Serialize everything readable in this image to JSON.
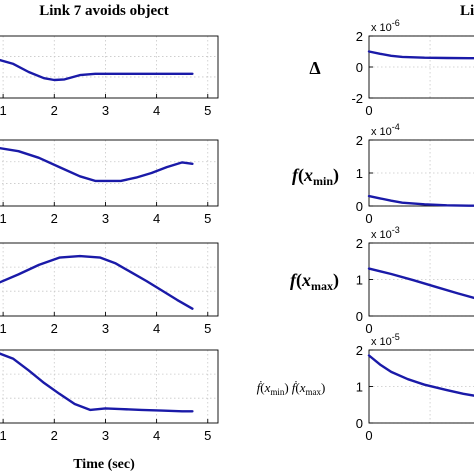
{
  "figure": {
    "left_title": "Link 7 avoids object",
    "right_title": "Link",
    "xlabel": "Time (sec)",
    "line_color": "#1a1aa8",
    "right_ylabels": [
      "Δ",
      "f(xmin)",
      "f(xmax)",
      "ḟ(xmin)ḟ(xmax)"
    ]
  },
  "chart_data": [
    {
      "type": "line",
      "panel": "left-1",
      "title": "Link 7 avoids object",
      "xlabel": "",
      "ylabel": "",
      "x_ticks": [
        "1",
        "2",
        "3",
        "4",
        "5"
      ],
      "xlim": [
        0.9,
        5.2
      ],
      "ylim": [
        0,
        1
      ],
      "series": [
        {
          "x": [
            0.9,
            1.2,
            1.5,
            1.8,
            2.0,
            2.2,
            2.5,
            2.8,
            3.2,
            3.6,
            4.0,
            4.4,
            4.7
          ],
          "y": [
            0.62,
            0.55,
            0.42,
            0.32,
            0.29,
            0.3,
            0.37,
            0.39,
            0.39,
            0.39,
            0.39,
            0.39,
            0.39
          ]
        }
      ],
      "grid": true
    },
    {
      "type": "line",
      "panel": "left-2",
      "title": "",
      "xlabel": "",
      "ylabel": "",
      "x_ticks": [
        "1",
        "2",
        "3",
        "4",
        "5"
      ],
      "xlim": [
        0.9,
        5.2
      ],
      "ylim": [
        0,
        1
      ],
      "series": [
        {
          "x": [
            0.9,
            1.3,
            1.7,
            2.1,
            2.5,
            2.8,
            3.0,
            3.3,
            3.6,
            3.9,
            4.2,
            4.5,
            4.7
          ],
          "y": [
            0.88,
            0.83,
            0.73,
            0.59,
            0.45,
            0.38,
            0.38,
            0.38,
            0.43,
            0.5,
            0.59,
            0.66,
            0.64
          ]
        }
      ],
      "grid": true
    },
    {
      "type": "line",
      "panel": "left-3",
      "title": "",
      "xlabel": "",
      "ylabel": "",
      "x_ticks": [
        "1",
        "2",
        "3",
        "4",
        "5"
      ],
      "xlim": [
        0.9,
        5.2
      ],
      "ylim": [
        0,
        1
      ],
      "series": [
        {
          "x": [
            0.9,
            1.3,
            1.7,
            2.1,
            2.5,
            2.9,
            3.2,
            3.5,
            3.8,
            4.1,
            4.4,
            4.7
          ],
          "y": [
            0.45,
            0.57,
            0.7,
            0.8,
            0.82,
            0.8,
            0.72,
            0.6,
            0.48,
            0.35,
            0.22,
            0.1
          ]
        }
      ],
      "grid": true
    },
    {
      "type": "line",
      "panel": "left-4",
      "title": "",
      "xlabel": "Time (sec)",
      "ylabel": "",
      "x_ticks": [
        "1",
        "2",
        "3",
        "4",
        "5"
      ],
      "xlim": [
        0.9,
        5.2
      ],
      "ylim": [
        0,
        1
      ],
      "series": [
        {
          "x": [
            0.9,
            1.2,
            1.5,
            1.8,
            2.1,
            2.4,
            2.7,
            3.0,
            3.3,
            3.7,
            4.1,
            4.5,
            4.7
          ],
          "y": [
            0.96,
            0.88,
            0.72,
            0.55,
            0.4,
            0.26,
            0.18,
            0.2,
            0.19,
            0.18,
            0.17,
            0.16,
            0.16
          ]
        }
      ],
      "grid": true
    },
    {
      "type": "line",
      "panel": "right-1",
      "title": "",
      "xlabel": "",
      "ylabel": "Δ",
      "x_ticks": [
        "0"
      ],
      "y_ticks": [
        "2",
        "0",
        "-2"
      ],
      "y_multiplier": "x 10",
      "y_exponent": "-6",
      "xlim": [
        0,
        1
      ],
      "ylim": [
        -2,
        2
      ],
      "series": [
        {
          "x": [
            0,
            0.1,
            0.2,
            0.3,
            0.5,
            0.7,
            0.9,
            1.0
          ],
          "y": [
            1.0,
            0.85,
            0.72,
            0.65,
            0.6,
            0.58,
            0.57,
            0.57
          ]
        }
      ],
      "grid": true
    },
    {
      "type": "line",
      "panel": "right-2",
      "title": "",
      "xlabel": "",
      "ylabel": "f(xmin)",
      "x_ticks": [
        "0"
      ],
      "y_ticks": [
        "2",
        "1",
        "0"
      ],
      "y_multiplier": "x 10",
      "y_exponent": "-4",
      "xlim": [
        0,
        1
      ],
      "ylim": [
        0,
        2
      ],
      "series": [
        {
          "x": [
            0,
            0.1,
            0.2,
            0.3,
            0.5,
            0.7,
            0.9,
            1.0
          ],
          "y": [
            0.3,
            0.23,
            0.16,
            0.1,
            0.05,
            0.02,
            0.01,
            0.01
          ]
        }
      ],
      "grid": true
    },
    {
      "type": "line",
      "panel": "right-3",
      "title": "",
      "xlabel": "",
      "ylabel": "f(xmax)",
      "x_ticks": [
        "0"
      ],
      "y_ticks": [
        "2",
        "1",
        "0"
      ],
      "y_multiplier": "x 10",
      "y_exponent": "-3",
      "xlim": [
        0,
        1
      ],
      "ylim": [
        0,
        2
      ],
      "series": [
        {
          "x": [
            0,
            0.2,
            0.4,
            0.6,
            0.8,
            1.0
          ],
          "y": [
            1.3,
            1.15,
            0.98,
            0.8,
            0.62,
            0.45
          ]
        }
      ],
      "grid": true
    },
    {
      "type": "line",
      "panel": "right-4",
      "title": "",
      "xlabel": "",
      "ylabel": "ḟ(xmin)ḟ(xmax)",
      "x_ticks": [
        "0"
      ],
      "y_ticks": [
        "2",
        "1",
        "0"
      ],
      "y_multiplier": "x 10",
      "y_exponent": "-5",
      "xlim": [
        0,
        1
      ],
      "ylim": [
        0,
        2
      ],
      "series": [
        {
          "x": [
            0,
            0.1,
            0.2,
            0.35,
            0.5,
            0.7,
            0.85,
            1.0
          ],
          "y": [
            1.85,
            1.6,
            1.4,
            1.2,
            1.05,
            0.9,
            0.8,
            0.72
          ]
        }
      ],
      "grid": true
    }
  ]
}
